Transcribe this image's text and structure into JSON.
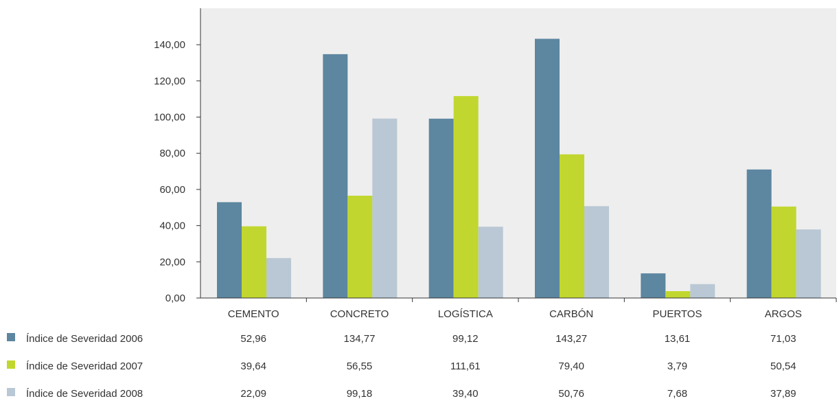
{
  "chart_data": {
    "type": "bar",
    "categories": [
      "CEMENTO",
      "CONCRETO",
      "LOGÍSTICA",
      "CARBÓN",
      "PUERTOS",
      "ARGOS"
    ],
    "series": [
      {
        "name": "Índice de Severidad 2006",
        "color": "#5d86a0",
        "values": [
          52.96,
          134.77,
          99.12,
          143.27,
          13.61,
          71.03
        ],
        "labels": [
          "52,96",
          "134,77",
          "99,12",
          "143,27",
          "13,61",
          "71,03"
        ]
      },
      {
        "name": "Índice de Severidad 2007",
        "color": "#c1d72f",
        "values": [
          39.64,
          56.55,
          111.61,
          79.4,
          3.79,
          50.54
        ],
        "labels": [
          "39,64",
          "56,55",
          "111,61",
          "79,40",
          "3,79",
          "50,54"
        ]
      },
      {
        "name": "Índice de Severidad 2008",
        "color": "#b9c8d4",
        "values": [
          22.09,
          99.18,
          39.4,
          50.76,
          7.68,
          37.89
        ],
        "labels": [
          "22,09",
          "99,18",
          "39,40",
          "50,76",
          "7,68",
          "37,89"
        ]
      }
    ],
    "ylim": [
      0,
      160
    ],
    "yticks": [
      0,
      20,
      40,
      60,
      80,
      100,
      120,
      140
    ],
    "ytick_labels": [
      "0,00",
      "20,00",
      "40,00",
      "60,00",
      "80,00",
      "100,00",
      "120,00",
      "140,00"
    ],
    "grid": false,
    "legend": "bottom-left data table",
    "background_color": "#eeeeee"
  }
}
